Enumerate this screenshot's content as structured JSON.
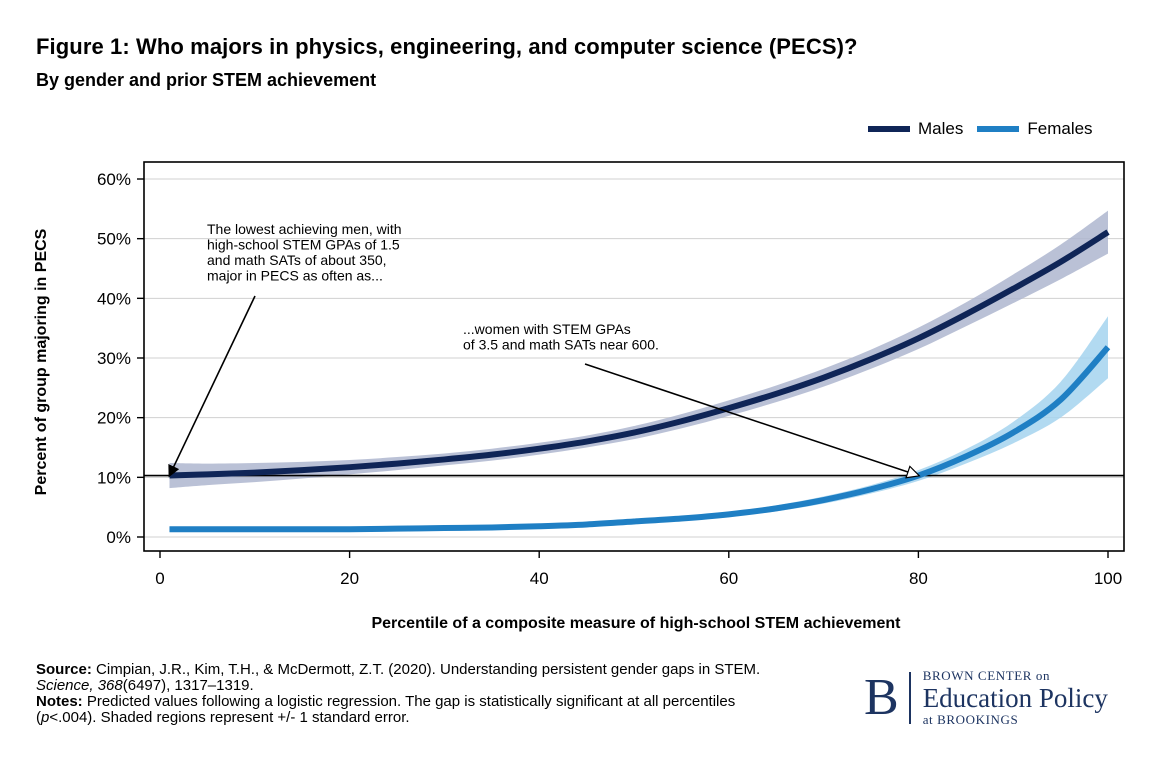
{
  "header": {
    "title": "Figure 1: Who majors in physics, engineering, and computer science (PECS)?",
    "subtitle": "By gender and prior STEM achievement"
  },
  "chart_data": {
    "type": "line",
    "xlabel": "Percentile of a composite measure of high-school STEM achievement",
    "ylabel": "Percent of group majoring in PECS",
    "xlim": [
      0,
      100
    ],
    "ylim": [
      0,
      60
    ],
    "x_ticks": [
      0,
      20,
      40,
      60,
      80,
      100
    ],
    "y_ticks": [
      0,
      10,
      20,
      30,
      40,
      50,
      60
    ],
    "y_tick_labels": [
      "0%",
      "10%",
      "20%",
      "30%",
      "40%",
      "50%",
      "60%"
    ],
    "grid": true,
    "legend_position": "top-right",
    "reference_line_y": 10.3,
    "x": [
      1,
      5,
      10,
      15,
      20,
      25,
      30,
      35,
      40,
      45,
      50,
      55,
      60,
      65,
      70,
      75,
      80,
      85,
      90,
      95,
      100
    ],
    "series": [
      {
        "name": "Males",
        "color": "#0f2557",
        "band_color": "#aeb6cf",
        "values": [
          10.3,
          10.5,
          10.8,
          11.2,
          11.7,
          12.3,
          13.0,
          13.8,
          14.8,
          16.0,
          17.5,
          19.4,
          21.6,
          24.0,
          26.7,
          29.8,
          33.3,
          37.3,
          41.6,
          46.1,
          51.1
        ],
        "se": [
          2.1,
          1.8,
          1.6,
          1.4,
          1.2,
          1.1,
          1.0,
          1.0,
          1.0,
          1.0,
          1.1,
          1.2,
          1.3,
          1.4,
          1.5,
          1.6,
          1.8,
          2.0,
          2.4,
          2.9,
          3.6
        ]
      },
      {
        "name": "Females",
        "color": "#1f7fc4",
        "band_color": "#a5d3ef",
        "values": [
          1.3,
          1.3,
          1.3,
          1.3,
          1.3,
          1.4,
          1.5,
          1.6,
          1.8,
          2.1,
          2.6,
          3.1,
          3.8,
          4.8,
          6.2,
          8.0,
          10.3,
          13.5,
          17.5,
          23.0,
          31.8
        ],
        "se": [
          0.4,
          0.4,
          0.3,
          0.3,
          0.3,
          0.3,
          0.3,
          0.3,
          0.3,
          0.3,
          0.3,
          0.4,
          0.4,
          0.5,
          0.6,
          0.7,
          0.9,
          1.2,
          1.8,
          3.0,
          5.2
        ]
      }
    ],
    "annotations": [
      {
        "id": "men",
        "lines": [
          "The lowest achieving men, with",
          "high-school STEM GPAs of 1.5",
          "and math SATs of about 350,",
          "major in PECS as often as..."
        ],
        "arrow_to": [
          1,
          10.3
        ]
      },
      {
        "id": "women",
        "lines": [
          "...women with STEM GPAs",
          "of 3.5 and math SATs near 600."
        ],
        "arrow_to": [
          80,
          10.3
        ]
      }
    ]
  },
  "footer": {
    "source_label": "Source:",
    "source_text_1": "Cimpian, J.R., Kim, T.H., & McDermott, Z.T. (2020). Understanding persistent gender gaps in STEM.",
    "source_journal": "Science, 368",
    "source_text_2": "(6497), 1317–1319.",
    "notes_label": "Notes:",
    "notes_text_1": "Predicted values following a logistic regression. The gap is statistically significant at all percentiles (",
    "notes_p": "p",
    "notes_text_2": "<.004). Shaded regions represent +/- 1 standard error."
  },
  "logo": {
    "letter": "B",
    "line1": "BROWN CENTER on",
    "line2": "Education Policy",
    "line3": "at BROOKINGS"
  }
}
